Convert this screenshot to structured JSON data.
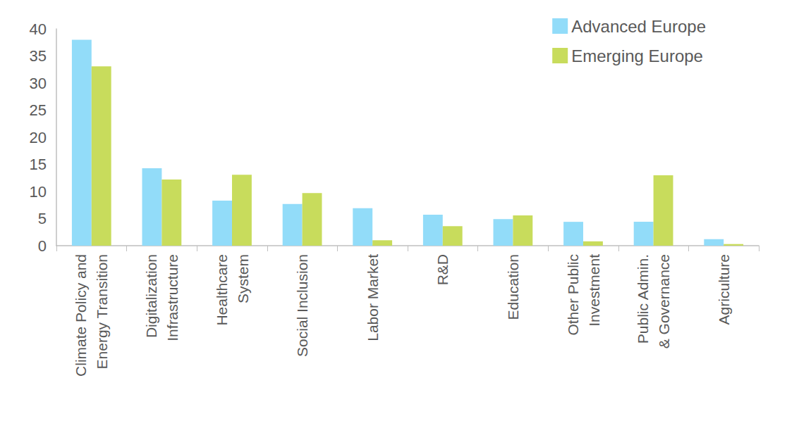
{
  "chart_data": {
    "type": "bar",
    "categories": [
      "Climate Policy and\nEnergy Transition",
      "Digitalization\nInfrastructure",
      "Healthcare\nSystem",
      "Social Inclusion",
      "Labor Market",
      "R&D",
      "Education",
      "Other Public\nInvestment",
      "Public Admin.\n& Governance",
      "Agriculture"
    ],
    "series": [
      {
        "name": "Advanced Europe",
        "color": "#92dcf9",
        "values": [
          38.0,
          14.3,
          8.3,
          7.7,
          6.9,
          5.7,
          4.9,
          4.4,
          4.4,
          1.2
        ]
      },
      {
        "name": "Emerging Europe",
        "color": "#c8dc5c",
        "values": [
          33.1,
          12.2,
          13.1,
          9.7,
          1.0,
          3.6,
          5.6,
          0.8,
          13.0,
          0.3
        ]
      }
    ],
    "ylim": [
      0,
      40
    ],
    "yticks": [
      0,
      5,
      10,
      15,
      20,
      25,
      30,
      35,
      40
    ],
    "grid": false,
    "legend": "top-right"
  }
}
